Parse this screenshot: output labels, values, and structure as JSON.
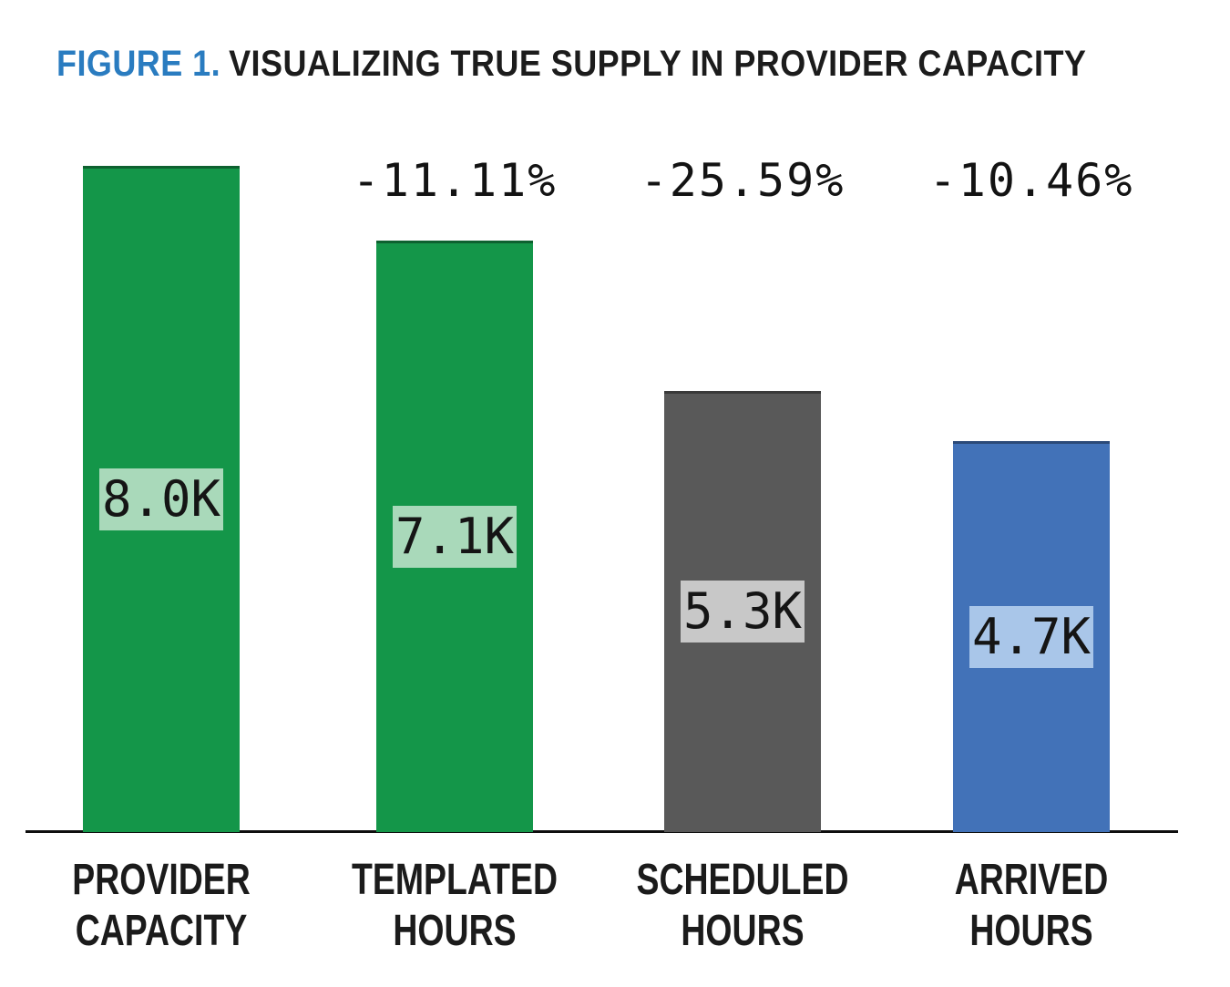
{
  "figure": {
    "label": "FIGURE 1.",
    "title": "VISUALIZING TRUE SUPPLY IN PROVIDER CAPACITY",
    "label_color": "#2a7cc0",
    "title_color": "#1c1c1c"
  },
  "chart_data": {
    "type": "bar",
    "title": "FIGURE 1. VISUALIZING TRUE SUPPLY IN PROVIDER CAPACITY",
    "categories": [
      "PROVIDER CAPACITY",
      "TEMPLATED HOURS",
      "SCHEDULED HOURS",
      "ARRIVED HOURS"
    ],
    "values": [
      8000,
      7100,
      5300,
      4700
    ],
    "value_labels": [
      "8.0K",
      "7.1K",
      "5.3K",
      "4.7K"
    ],
    "delta_labels": [
      "",
      "-11.11%",
      "-25.59%",
      "-10.46%"
    ],
    "bar_colors": [
      "#149649",
      "#149649",
      "#595959",
      "#4272b8"
    ],
    "value_label_bg": [
      "#a9d9ba",
      "#a9d9ba",
      "#c8c8c8",
      "#a9c6e9"
    ],
    "xlabel": "",
    "ylabel": "",
    "ylim": [
      0,
      8000
    ],
    "grid": false,
    "legend": false,
    "baseline_axis": true
  }
}
